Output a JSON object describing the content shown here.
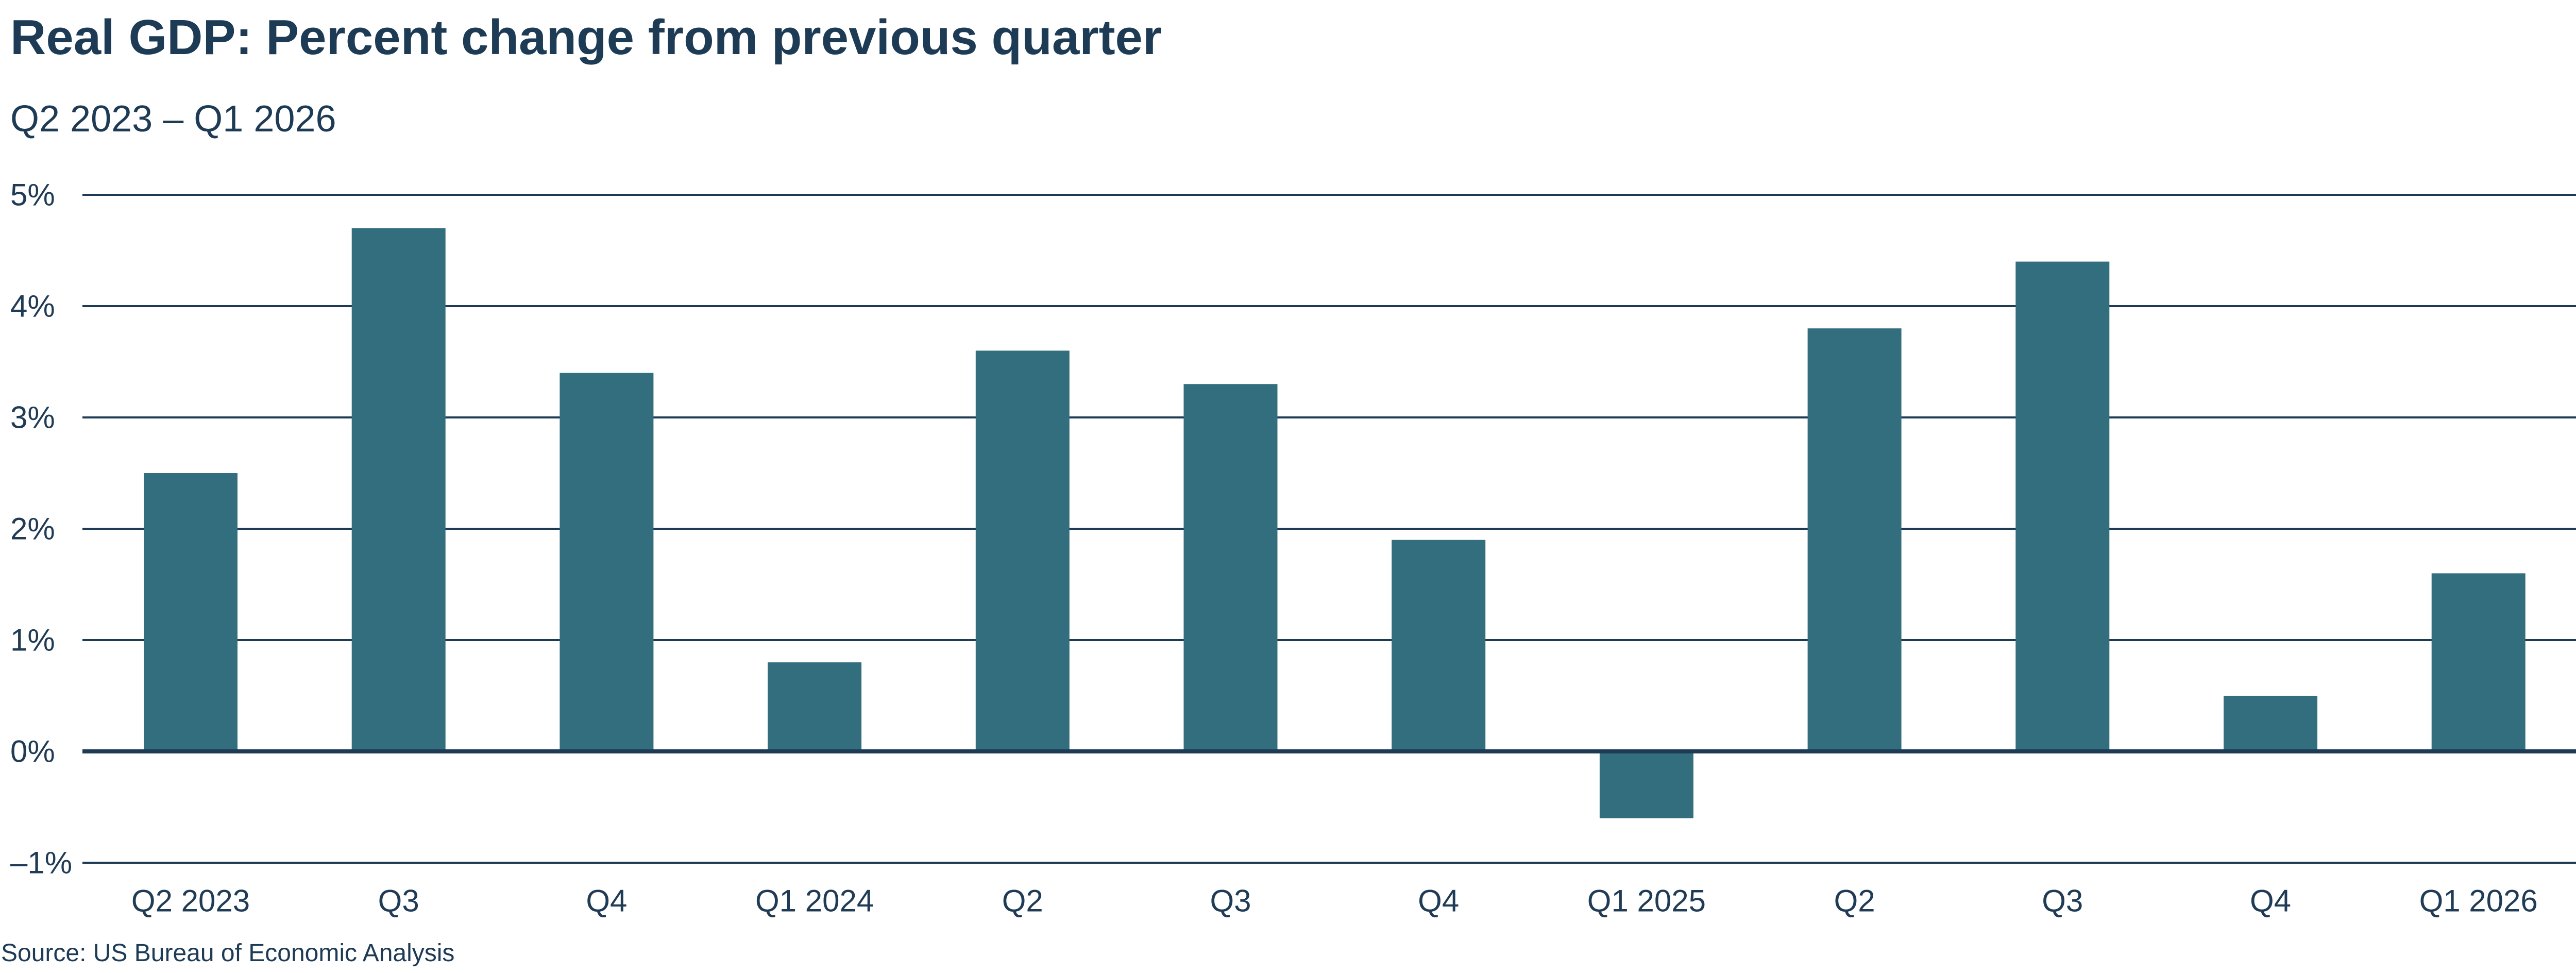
{
  "chart_data": {
    "type": "bar",
    "title": "Real GDP: Percent change from previous quarter",
    "subtitle": "Q2 2023 – Q1 2026",
    "source": "Source: US Bureau of Economic Analysis",
    "categories": [
      "Q2 2023",
      "Q3",
      "Q4",
      "Q1 2024",
      "Q2",
      "Q3",
      "Q4",
      "Q1 2025",
      "Q2",
      "Q3",
      "Q4",
      "Q1 2026"
    ],
    "values": [
      2.5,
      4.7,
      3.4,
      0.8,
      3.6,
      3.3,
      1.9,
      -0.6,
      3.8,
      4.4,
      0.5,
      1.6
    ],
    "ylim": [
      -1,
      5
    ],
    "yticks": [
      5,
      4,
      3,
      2,
      1,
      0,
      -1
    ],
    "ytick_labels": [
      "5%",
      "4%",
      "3%",
      "2%",
      "1%",
      "0%",
      "–1%"
    ],
    "xlabel": "",
    "ylabel": "",
    "grid": true,
    "legend": "none",
    "colors": {
      "bar": "#336e7e",
      "grid": "#1e3b55",
      "zero_line": "#1e3b55",
      "text": "#1e3b55"
    }
  }
}
